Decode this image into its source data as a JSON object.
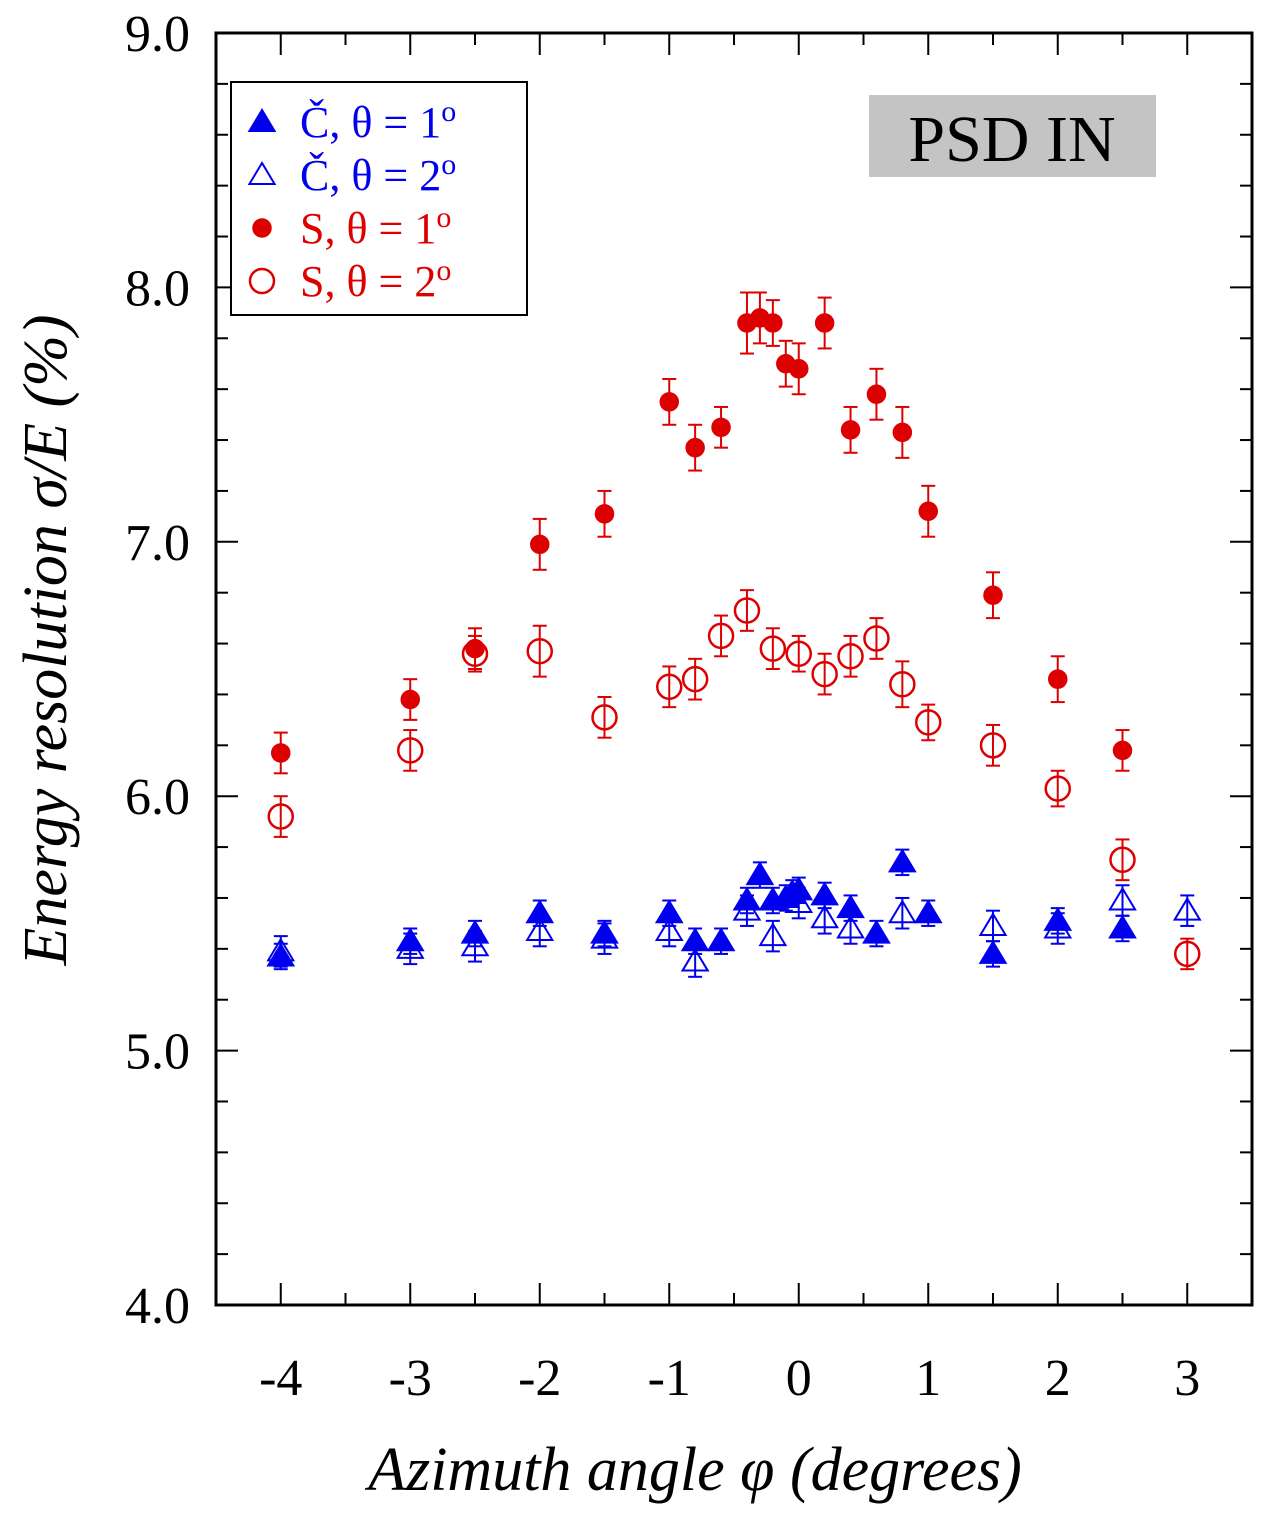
{
  "chart_data": {
    "type": "scatter",
    "xlabel": "Azimuth angle φ (degrees)",
    "ylabel": "Energy resolution σ/E (%)",
    "xlim": [
      -4.5,
      3.5
    ],
    "ylim": [
      4.0,
      9.0
    ],
    "x_ticks": [
      -4,
      -3,
      -2,
      -1,
      0,
      1,
      2,
      3
    ],
    "x_tick_labels": [
      "-4",
      "-3",
      "-2",
      "-1",
      "0",
      "1",
      "2",
      "3"
    ],
    "y_ticks": [
      4.0,
      5.0,
      6.0,
      7.0,
      8.0,
      9.0
    ],
    "y_tick_labels": [
      "4.0",
      "5.0",
      "6.0",
      "7.0",
      "8.0",
      "9.0"
    ],
    "grid": false,
    "legend_position": "top-left",
    "badge": "PSD IN",
    "colors": {
      "blue": "#0000ee",
      "red": "#dd0000",
      "badge_bg": "#c4c4c4"
    },
    "series": [
      {
        "name": "Č, θ = 1º",
        "legend_main": "Č, θ = 1",
        "legend_sup": "o",
        "marker": "triangle-filled",
        "color": "#0000ee",
        "points": [
          {
            "x": -4.0,
            "y": 5.37,
            "err": 0.05
          },
          {
            "x": -3.0,
            "y": 5.43,
            "err": 0.05
          },
          {
            "x": -2.5,
            "y": 5.46,
            "err": 0.05
          },
          {
            "x": -2.0,
            "y": 5.54,
            "err": 0.05
          },
          {
            "x": -1.5,
            "y": 5.46,
            "err": 0.05
          },
          {
            "x": -1.0,
            "y": 5.54,
            "err": 0.05
          },
          {
            "x": -0.8,
            "y": 5.43,
            "err": 0.05
          },
          {
            "x": -0.6,
            "y": 5.43,
            "err": 0.05
          },
          {
            "x": -0.4,
            "y": 5.59,
            "err": 0.05
          },
          {
            "x": -0.3,
            "y": 5.69,
            "err": 0.05
          },
          {
            "x": -0.2,
            "y": 5.59,
            "err": 0.05
          },
          {
            "x": -0.1,
            "y": 5.6,
            "err": 0.05
          },
          {
            "x": -0.05,
            "y": 5.62,
            "err": 0.05
          },
          {
            "x": 0.0,
            "y": 5.63,
            "err": 0.05
          },
          {
            "x": 0.2,
            "y": 5.61,
            "err": 0.05
          },
          {
            "x": 0.4,
            "y": 5.56,
            "err": 0.05
          },
          {
            "x": 0.6,
            "y": 5.46,
            "err": 0.05
          },
          {
            "x": 0.8,
            "y": 5.74,
            "err": 0.05
          },
          {
            "x": 1.0,
            "y": 5.54,
            "err": 0.05
          },
          {
            "x": 1.5,
            "y": 5.38,
            "err": 0.05
          },
          {
            "x": 2.0,
            "y": 5.51,
            "err": 0.05
          },
          {
            "x": 2.5,
            "y": 5.48,
            "err": 0.05
          }
        ]
      },
      {
        "name": "Č, θ = 2º",
        "legend_main": "Č, θ = 2",
        "legend_sup": "o",
        "marker": "triangle-open",
        "color": "#0000ee",
        "points": [
          {
            "x": -4.0,
            "y": 5.39,
            "err": 0.06
          },
          {
            "x": -3.0,
            "y": 5.4,
            "err": 0.06
          },
          {
            "x": -2.5,
            "y": 5.41,
            "err": 0.06
          },
          {
            "x": -2.0,
            "y": 5.47,
            "err": 0.06
          },
          {
            "x": -1.5,
            "y": 5.44,
            "err": 0.06
          },
          {
            "x": -1.0,
            "y": 5.47,
            "err": 0.06
          },
          {
            "x": -0.8,
            "y": 5.35,
            "err": 0.06
          },
          {
            "x": -0.4,
            "y": 5.55,
            "err": 0.06
          },
          {
            "x": -0.2,
            "y": 5.45,
            "err": 0.06
          },
          {
            "x": 0.0,
            "y": 5.58,
            "err": 0.06
          },
          {
            "x": 0.2,
            "y": 5.52,
            "err": 0.06
          },
          {
            "x": 0.4,
            "y": 5.48,
            "err": 0.06
          },
          {
            "x": 0.8,
            "y": 5.54,
            "err": 0.06
          },
          {
            "x": 1.5,
            "y": 5.49,
            "err": 0.06
          },
          {
            "x": 2.0,
            "y": 5.48,
            "err": 0.06
          },
          {
            "x": 2.5,
            "y": 5.59,
            "err": 0.06
          },
          {
            "x": 3.0,
            "y": 5.55,
            "err": 0.06
          }
        ]
      },
      {
        "name": "S, θ = 1º",
        "legend_main": "S, θ = 1",
        "legend_sup": "o",
        "marker": "circle-filled",
        "color": "#dd0000",
        "points": [
          {
            "x": -4.0,
            "y": 6.17,
            "err": 0.08
          },
          {
            "x": -3.0,
            "y": 6.38,
            "err": 0.08
          },
          {
            "x": -2.5,
            "y": 6.58,
            "err": 0.08
          },
          {
            "x": -2.0,
            "y": 6.99,
            "err": 0.1
          },
          {
            "x": -1.5,
            "y": 7.11,
            "err": 0.09
          },
          {
            "x": -1.0,
            "y": 7.55,
            "err": 0.09
          },
          {
            "x": -0.8,
            "y": 7.37,
            "err": 0.09
          },
          {
            "x": -0.6,
            "y": 7.45,
            "err": 0.08
          },
          {
            "x": -0.4,
            "y": 7.86,
            "err": 0.12
          },
          {
            "x": -0.3,
            "y": 7.88,
            "err": 0.1
          },
          {
            "x": -0.2,
            "y": 7.86,
            "err": 0.09
          },
          {
            "x": -0.1,
            "y": 7.7,
            "err": 0.09
          },
          {
            "x": 0.0,
            "y": 7.68,
            "err": 0.1
          },
          {
            "x": 0.2,
            "y": 7.86,
            "err": 0.1
          },
          {
            "x": 0.4,
            "y": 7.44,
            "err": 0.09
          },
          {
            "x": 0.6,
            "y": 7.58,
            "err": 0.1
          },
          {
            "x": 0.8,
            "y": 7.43,
            "err": 0.1
          },
          {
            "x": 1.0,
            "y": 7.12,
            "err": 0.1
          },
          {
            "x": 1.5,
            "y": 6.79,
            "err": 0.09
          },
          {
            "x": 2.0,
            "y": 6.46,
            "err": 0.09
          },
          {
            "x": 2.5,
            "y": 6.18,
            "err": 0.08
          }
        ]
      },
      {
        "name": "S, θ = 2º",
        "legend_main": "S, θ = 2",
        "legend_sup": "o",
        "marker": "circle-open",
        "color": "#dd0000",
        "points": [
          {
            "x": -4.0,
            "y": 5.92,
            "err": 0.08
          },
          {
            "x": -3.0,
            "y": 6.18,
            "err": 0.08
          },
          {
            "x": -2.5,
            "y": 6.56,
            "err": 0.07
          },
          {
            "x": -2.0,
            "y": 6.57,
            "err": 0.1
          },
          {
            "x": -1.5,
            "y": 6.31,
            "err": 0.08
          },
          {
            "x": -1.0,
            "y": 6.43,
            "err": 0.08
          },
          {
            "x": -0.8,
            "y": 6.46,
            "err": 0.08
          },
          {
            "x": -0.6,
            "y": 6.63,
            "err": 0.08
          },
          {
            "x": -0.4,
            "y": 6.73,
            "err": 0.08
          },
          {
            "x": -0.2,
            "y": 6.58,
            "err": 0.08
          },
          {
            "x": 0.0,
            "y": 6.56,
            "err": 0.07
          },
          {
            "x": 0.2,
            "y": 6.48,
            "err": 0.08
          },
          {
            "x": 0.4,
            "y": 6.55,
            "err": 0.08
          },
          {
            "x": 0.6,
            "y": 6.62,
            "err": 0.08
          },
          {
            "x": 0.8,
            "y": 6.44,
            "err": 0.09
          },
          {
            "x": 1.0,
            "y": 6.29,
            "err": 0.07
          },
          {
            "x": 1.5,
            "y": 6.2,
            "err": 0.08
          },
          {
            "x": 2.0,
            "y": 6.03,
            "err": 0.07
          },
          {
            "x": 2.5,
            "y": 5.75,
            "err": 0.08
          },
          {
            "x": 3.0,
            "y": 5.38,
            "err": 0.06
          }
        ]
      }
    ]
  }
}
